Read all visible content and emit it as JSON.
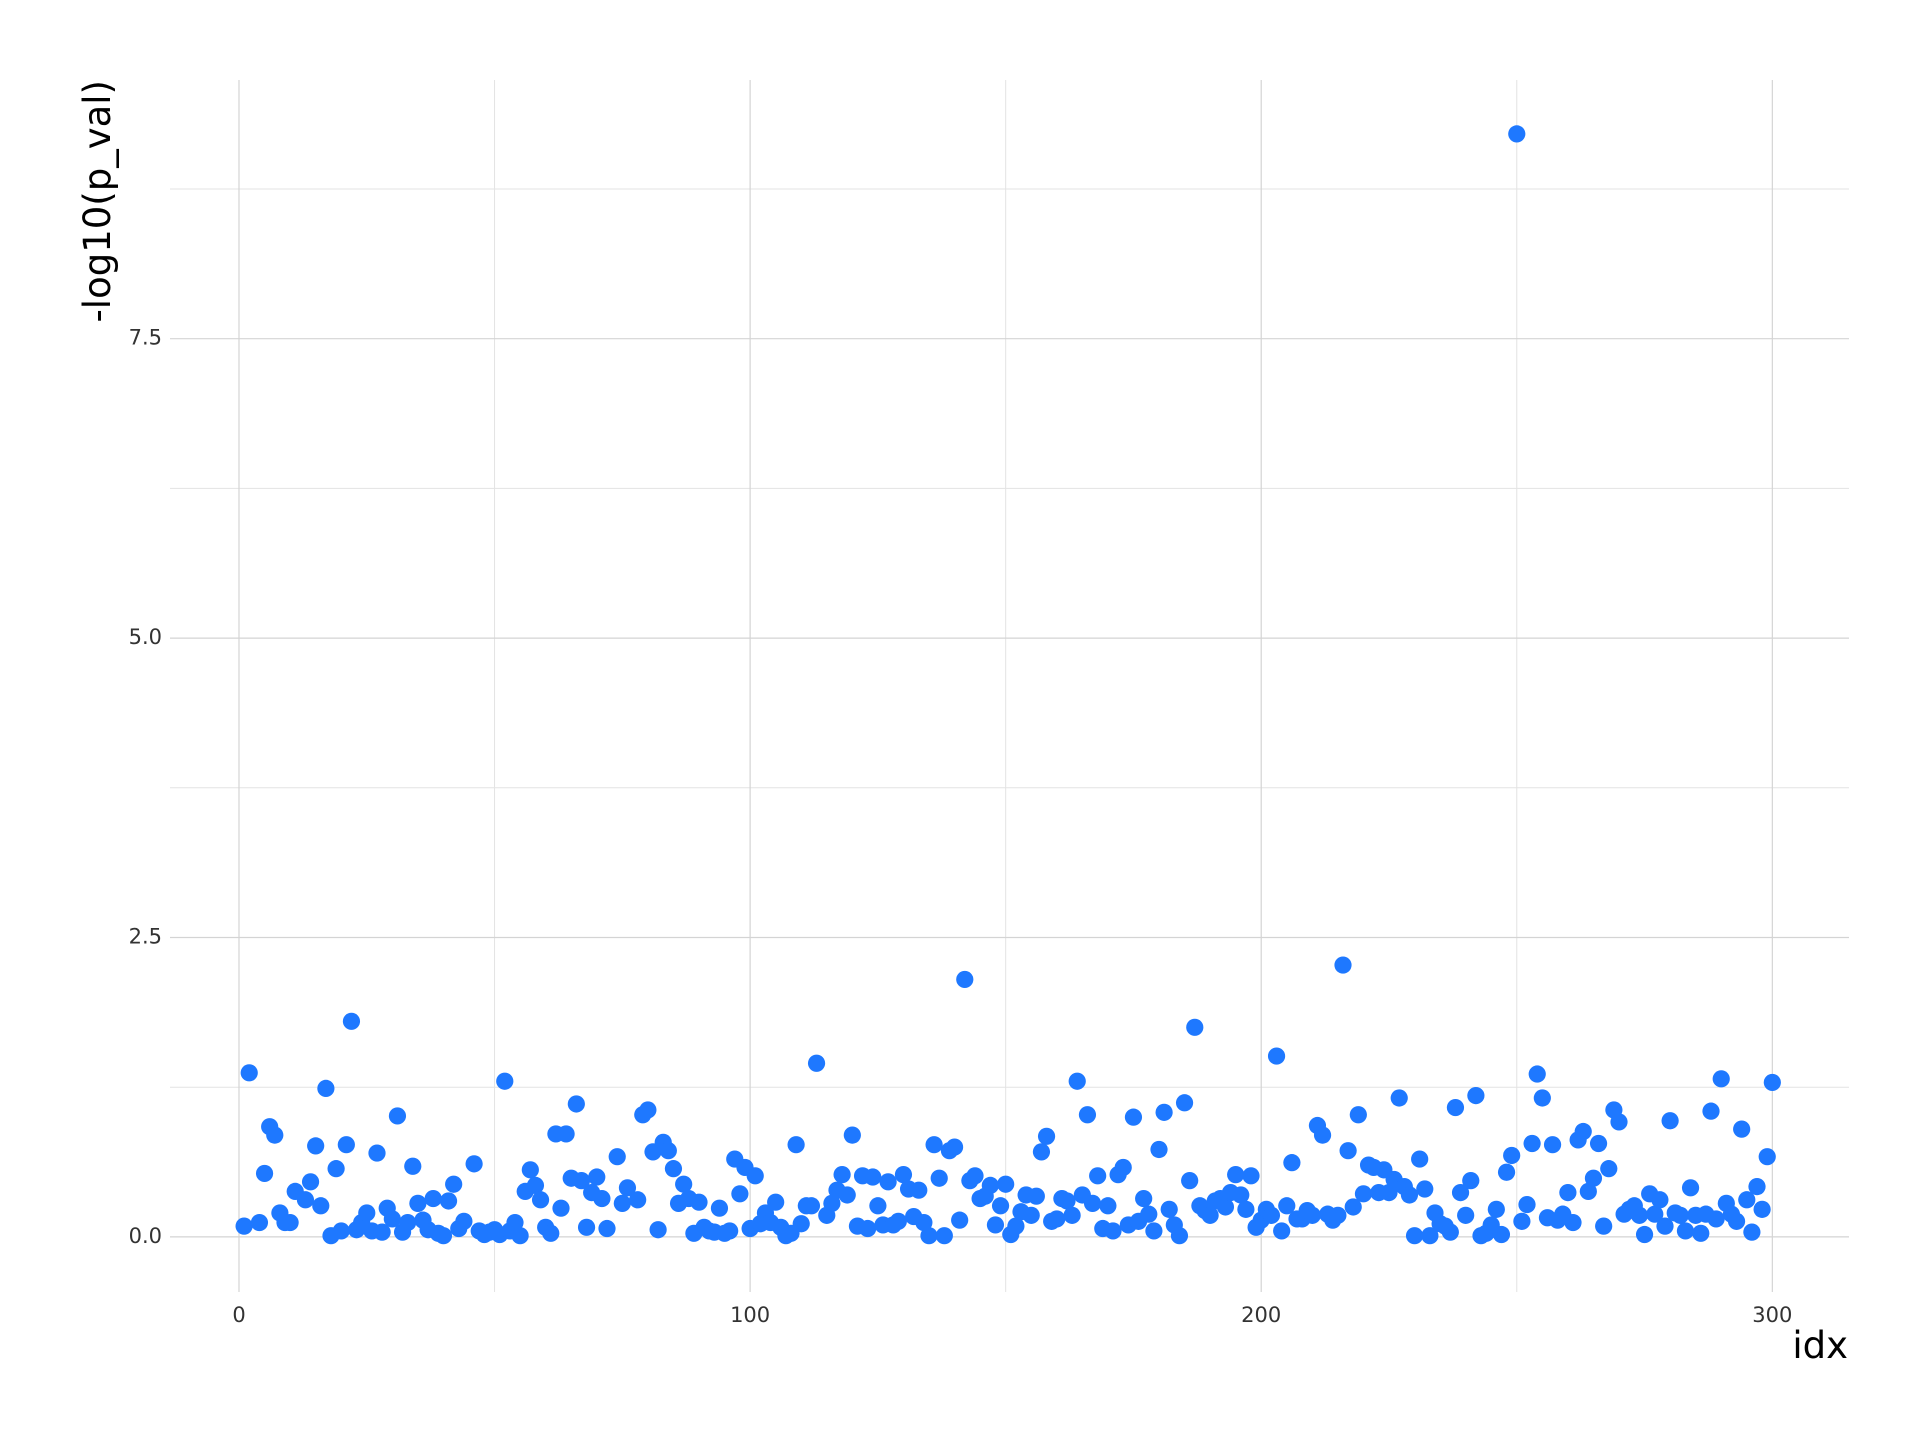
{
  "chart_data": {
    "type": "scatter",
    "x_label": "idx",
    "y_label": "-log10(p_val)",
    "color": "#1e78ff",
    "grid": true,
    "xlim": [
      -13.5,
      315
    ],
    "ylim": [
      -0.46,
      9.66
    ],
    "xticks": [
      0,
      100,
      200,
      300
    ],
    "yticks": [
      {
        "value": 0,
        "label": "0.0"
      },
      2.5,
      {
        "value": 5,
        "label": "5.0"
      },
      7.5
    ],
    "x": [
      1,
      2,
      4,
      5,
      6,
      7,
      8,
      9,
      10,
      11,
      13,
      14,
      15,
      16,
      17,
      18,
      19,
      20,
      21,
      22,
      23,
      24,
      25,
      26,
      27,
      28,
      29,
      30,
      31,
      32,
      33,
      34,
      35,
      36,
      37,
      38,
      39,
      40,
      41,
      42,
      43,
      44,
      46,
      47,
      48,
      49,
      50,
      51,
      52,
      53,
      54,
      55,
      56,
      57,
      58,
      59,
      60,
      61,
      62,
      63,
      64,
      65,
      66,
      67,
      68,
      69,
      70,
      71,
      72,
      74,
      75,
      76,
      78,
      79,
      80,
      81,
      82,
      83,
      84,
      85,
      86,
      87,
      88,
      89,
      90,
      91,
      92,
      93,
      94,
      95,
      96,
      97,
      98,
      99,
      100,
      101,
      102,
      103,
      104,
      105,
      106,
      107,
      108,
      109,
      110,
      111,
      112,
      113,
      115,
      116,
      117,
      118,
      119,
      120,
      121,
      122,
      123,
      124,
      125,
      126,
      127,
      128,
      129,
      130,
      131,
      132,
      133,
      134,
      135,
      136,
      137,
      138,
      139,
      140,
      141,
      142,
      143,
      144,
      145,
      146,
      147,
      148,
      149,
      150,
      151,
      152,
      153,
      154,
      155,
      156,
      157,
      158,
      159,
      160,
      161,
      162,
      163,
      164,
      165,
      166,
      167,
      168,
      169,
      170,
      171,
      172,
      173,
      174,
      175,
      176,
      177,
      178,
      179,
      180,
      181,
      182,
      183,
      184,
      185,
      186,
      187,
      188,
      189,
      190,
      191,
      192,
      193,
      194,
      195,
      196,
      197,
      198,
      199,
      200,
      201,
      202,
      203,
      204,
      205,
      206,
      207,
      208,
      209,
      210,
      211,
      212,
      213,
      214,
      215,
      216,
      217,
      218,
      219,
      220,
      221,
      222,
      223,
      224,
      225,
      226,
      227,
      228,
      229,
      230,
      231,
      232,
      233,
      234,
      235,
      236,
      237,
      238,
      239,
      240,
      241,
      242,
      243,
      244,
      245,
      246,
      247,
      248,
      249,
      250,
      251,
      252,
      253,
      254,
      255,
      256,
      257,
      258,
      259,
      260,
      261,
      262,
      263,
      264,
      265,
      266,
      267,
      268,
      269,
      270,
      271,
      272,
      273,
      274,
      275,
      276,
      277,
      278,
      279,
      280,
      281,
      282,
      283,
      284,
      285,
      286,
      287,
      288,
      289,
      290,
      291,
      292,
      293,
      294,
      295,
      296,
      297,
      298,
      299,
      300
    ],
    "y": [
      0.09,
      1.37,
      0.12,
      0.53,
      0.92,
      0.85,
      0.2,
      0.12,
      0.12,
      0.38,
      0.31,
      0.46,
      0.76,
      0.26,
      1.24,
      0.01,
      0.57,
      0.05,
      0.77,
      1.8,
      0.06,
      0.12,
      0.2,
      0.05,
      0.7,
      0.04,
      0.24,
      0.15,
      1.01,
      0.04,
      0.12,
      0.59,
      0.28,
      0.14,
      0.06,
      0.32,
      0.03,
      0.01,
      0.3,
      0.44,
      0.07,
      0.13,
      0.61,
      0.05,
      0.02,
      0.04,
      0.06,
      0.02,
      1.3,
      0.05,
      0.12,
      0.01,
      0.38,
      0.56,
      0.43,
      0.31,
      0.08,
      0.03,
      0.86,
      0.24,
      0.86,
      0.49,
      1.11,
      0.47,
      0.08,
      0.37,
      0.5,
      0.32,
      0.07,
      0.67,
      0.28,
      0.41,
      0.31,
      1.02,
      1.06,
      0.71,
      0.06,
      0.79,
      0.72,
      0.57,
      0.28,
      0.44,
      0.32,
      0.03,
      0.29,
      0.08,
      0.05,
      0.04,
      0.24,
      0.03,
      0.05,
      0.65,
      0.36,
      0.58,
      0.07,
      0.51,
      0.11,
      0.2,
      0.12,
      0.29,
      0.08,
      0.01,
      0.03,
      0.77,
      0.11,
      0.26,
      0.26,
      1.45,
      0.18,
      0.28,
      0.39,
      0.52,
      0.35,
      0.85,
      0.09,
      0.51,
      0.07,
      0.5,
      0.26,
      0.1,
      0.46,
      0.1,
      0.13,
      0.52,
      0.4,
      0.17,
      0.39,
      0.12,
      0.01,
      0.77,
      0.49,
      0.01,
      0.72,
      0.75,
      0.14,
      2.15,
      0.47,
      0.51,
      0.32,
      0.34,
      0.43,
      0.1,
      0.26,
      0.44,
      0.02,
      0.09,
      0.21,
      0.35,
      0.18,
      0.34,
      0.71,
      0.84,
      0.13,
      0.15,
      0.32,
      0.3,
      0.18,
      1.3,
      0.35,
      1.02,
      0.28,
      0.51,
      0.07,
      0.26,
      0.05,
      0.52,
      0.58,
      0.1,
      1.0,
      0.13,
      0.32,
      0.19,
      0.05,
      0.73,
      1.04,
      0.23,
      0.1,
      0.01,
      1.12,
      0.47,
      1.75,
      0.26,
      0.22,
      0.18,
      0.3,
      0.32,
      0.25,
      0.37,
      0.52,
      0.35,
      0.23,
      0.51,
      0.08,
      0.14,
      0.23,
      0.18,
      1.51,
      0.05,
      0.26,
      0.62,
      0.15,
      0.15,
      0.22,
      0.18,
      0.93,
      0.85,
      0.19,
      0.14,
      0.18,
      2.27,
      0.72,
      0.25,
      1.02,
      0.36,
      0.6,
      0.58,
      0.37,
      0.56,
      0.37,
      0.48,
      1.16,
      0.42,
      0.35,
      0.01,
      0.65,
      0.4,
      0.01,
      0.2,
      0.11,
      0.09,
      0.04,
      1.08,
      0.37,
      0.18,
      0.47,
      1.18,
      0.01,
      0.03,
      0.1,
      0.23,
      0.02,
      0.54,
      0.68,
      9.21,
      0.13,
      0.27,
      0.78,
      1.36,
      1.16,
      0.16,
      0.77,
      0.14,
      0.19,
      0.37,
      0.12,
      0.81,
      0.88,
      0.38,
      0.49,
      0.78,
      0.09,
      0.57,
      1.06,
      0.96,
      0.19,
      0.23,
      0.26,
      0.18,
      0.02,
      0.36,
      0.19,
      0.31,
      0.09,
      0.97,
      0.2,
      0.18,
      0.05,
      0.41,
      0.18,
      0.03,
      0.19,
      1.05,
      0.15,
      1.32,
      0.28,
      0.19,
      0.13,
      0.9,
      0.31,
      0.04,
      0.42,
      0.23,
      0.67,
      1.29
    ]
  }
}
